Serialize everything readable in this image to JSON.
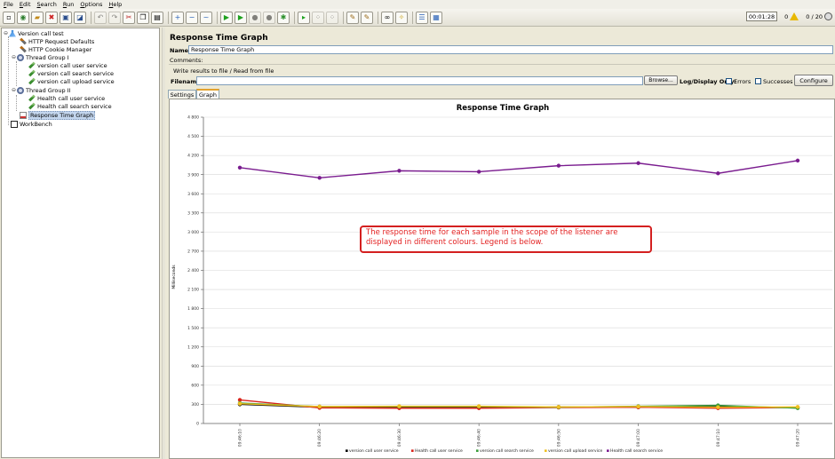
{
  "menu": [
    "File",
    "Edit",
    "Search",
    "Run",
    "Options",
    "Help"
  ],
  "toolbar": {
    "timer": "00:01:28",
    "error_count": "0",
    "threads": "0 / 20"
  },
  "tree": {
    "root": "Version call test",
    "http_defaults": "HTTP Request Defaults",
    "cookie_manager": "HTTP Cookie Manager",
    "group1": "Thread Group I",
    "g1_items": [
      "version call user service",
      "version call search service",
      "version call upload service"
    ],
    "group2": "Thread Group II",
    "g2_items": [
      "Health call user service",
      "Health call search service"
    ],
    "listener": "Response Time Graph",
    "workbench": "WorkBench"
  },
  "panel": {
    "title": "Response Time Graph",
    "name_label": "Name:",
    "name_value": "Response Time Graph",
    "comments_label": "Comments:",
    "file_group_title": "Write results to file / Read from file",
    "filename_label": "Filename",
    "filename_value": "",
    "browse": "Browse...",
    "log_display": "Log/Display Only:",
    "errors": "Errors",
    "successes": "Successes",
    "configure": "Configure",
    "tabs": [
      "Settings",
      "Graph"
    ]
  },
  "callout": {
    "text": "The response time for each sample in the scope of the listener are displayed in different colours. Legend is below."
  },
  "chart_data": {
    "type": "line",
    "title": "Response Time Graph",
    "ylabel": "Milliseconds",
    "xlabel": "",
    "ylim": [
      0,
      4800
    ],
    "yticks": [
      0,
      300,
      600,
      900,
      1200,
      1500,
      1800,
      2100,
      2400,
      2700,
      3000,
      3300,
      3600,
      3900,
      4200,
      4500,
      4800
    ],
    "x": [
      "09:46:10",
      "09:46:20",
      "09:46:30",
      "09:46:40",
      "09:46:50",
      "09:47:00",
      "09:47:10",
      "09:47:20"
    ],
    "series": [
      {
        "name": "version call user service",
        "color": "#000000",
        "values": [
          300,
          255,
          255,
          250,
          260,
          255,
          265,
          250
        ]
      },
      {
        "name": "Health call user service",
        "color": "#d9231b",
        "values": [
          370,
          245,
          240,
          240,
          250,
          255,
          240,
          250
        ]
      },
      {
        "name": "version call search service",
        "color": "#3a9d3a",
        "values": [
          320,
          265,
          265,
          265,
          255,
          270,
          285,
          240
        ]
      },
      {
        "name": "version call upload service",
        "color": "#f0c020",
        "values": [
          310,
          265,
          270,
          270,
          260,
          265,
          255,
          260
        ]
      },
      {
        "name": "Health call search service",
        "color": "#7a1c8f",
        "values": [
          4010,
          3850,
          3960,
          3945,
          4040,
          4080,
          3920,
          4120
        ]
      }
    ],
    "legend_position": "bottom-center",
    "grid": true
  }
}
